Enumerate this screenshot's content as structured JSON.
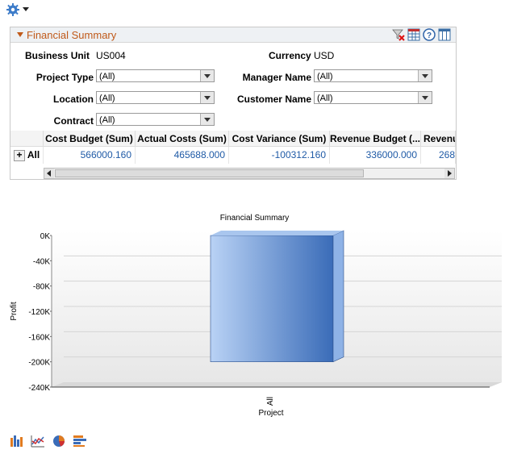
{
  "panel": {
    "title": "Financial Summary"
  },
  "filters": {
    "business_unit_label": "Business Unit",
    "business_unit_value": "US004",
    "currency_label": "Currency",
    "currency_value": "USD",
    "project_type_label": "Project Type",
    "project_type_value": "(All)",
    "manager_name_label": "Manager Name",
    "manager_name_value": "(All)",
    "location_label": "Location",
    "location_value": "(All)",
    "customer_name_label": "Customer Name",
    "customer_name_value": "(All)",
    "contract_label": "Contract",
    "contract_value": "(All)"
  },
  "grid": {
    "columns": [
      "Cost Budget (Sum)",
      "Actual Costs (Sum)",
      "Cost Variance (Sum)",
      "Revenue Budget (...",
      "Revenu"
    ],
    "row_label": "All",
    "values": [
      "566000.160",
      "465688.000",
      "-100312.160",
      "336000.000",
      "268"
    ]
  },
  "chart_data": {
    "type": "bar",
    "title": "Financial Summary",
    "xlabel": "Project",
    "ylabel": "Profit",
    "categories": [
      "All"
    ],
    "values": [
      -200000
    ],
    "ylim": [
      -240000,
      0
    ],
    "yticks": [
      "0K",
      "-40K",
      "-80K",
      "-120K",
      "-160K",
      "-200K",
      "-240K"
    ],
    "bar_color": "#4a7cc4",
    "grid": true
  },
  "colors": {
    "panel_title": "#c05a1a",
    "link_value": "#1f5aa6"
  }
}
